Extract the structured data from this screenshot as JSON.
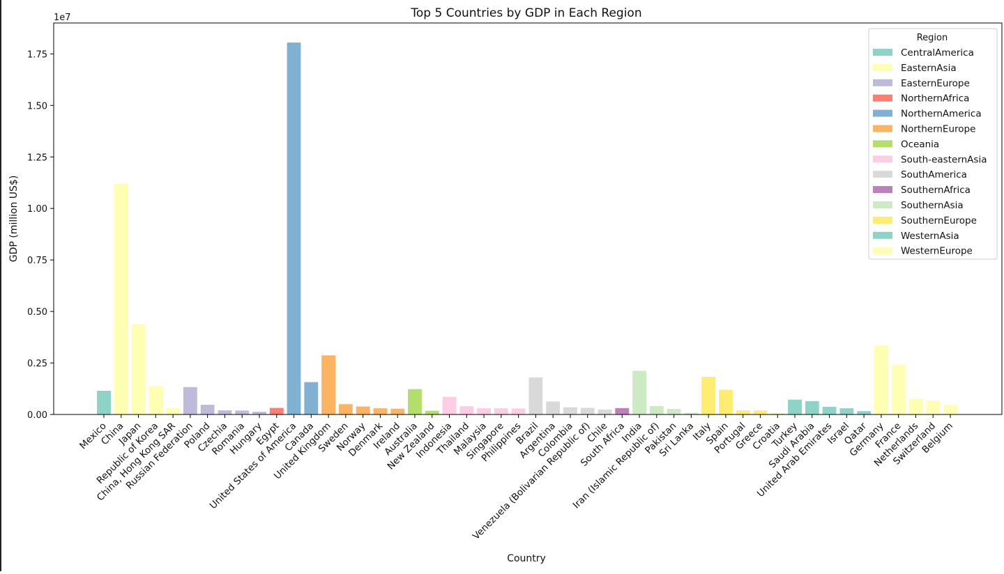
{
  "chart_data": {
    "type": "bar",
    "title": "Top 5 Countries by GDP in Each Region",
    "xlabel": "Country",
    "ylabel": "GDP (million US$)",
    "y_exponent_label": "1e7",
    "ylim": [
      0,
      19000000
    ],
    "yticks": [
      0,
      2500000,
      5000000,
      7500000,
      10000000,
      12500000,
      15000000,
      17500000
    ],
    "ytick_labels": [
      "0.00",
      "0.25",
      "0.50",
      "0.75",
      "1.00",
      "1.25",
      "1.50",
      "1.75"
    ],
    "legend": {
      "title": "Region",
      "placement": "top-right"
    },
    "regions": [
      {
        "name": "CentralAmerica",
        "color": "#8dd3c7"
      },
      {
        "name": "EasternAsia",
        "color": "#ffffb3"
      },
      {
        "name": "EasternEurope",
        "color": "#bebada"
      },
      {
        "name": "NorthernAfrica",
        "color": "#fb8072"
      },
      {
        "name": "NorthernAmerica",
        "color": "#80b1d3"
      },
      {
        "name": "NorthernEurope",
        "color": "#fdb462"
      },
      {
        "name": "Oceania",
        "color": "#b3de69"
      },
      {
        "name": "South-easternAsia",
        "color": "#fccde5"
      },
      {
        "name": "SouthAmerica",
        "color": "#d9d9d9"
      },
      {
        "name": "SouthernAfrica",
        "color": "#bc80bd"
      },
      {
        "name": "SouthernAsia",
        "color": "#ccebc5"
      },
      {
        "name": "SouthernEurope",
        "color": "#ffed6f"
      },
      {
        "name": "WesternAsia",
        "color": "#8dd3c7"
      },
      {
        "name": "WesternEurope",
        "color": "#ffffb3"
      }
    ],
    "bars": [
      {
        "country": "Mexico",
        "region": "CentralAmerica",
        "value": 1150000
      },
      {
        "country": "China",
        "region": "EasternAsia",
        "value": 11200000
      },
      {
        "country": "Japan",
        "region": "EasternAsia",
        "value": 4380000
      },
      {
        "country": "Republic of Korea",
        "region": "EasternAsia",
        "value": 1380000
      },
      {
        "country": "China, Hong Kong SAR",
        "region": "EasternAsia",
        "value": 320000
      },
      {
        "country": "Russian Federation",
        "region": "EasternEurope",
        "value": 1330000
      },
      {
        "country": "Poland",
        "region": "EasternEurope",
        "value": 470000
      },
      {
        "country": "Czechia",
        "region": "EasternEurope",
        "value": 200000
      },
      {
        "country": "Romania",
        "region": "EasternEurope",
        "value": 190000
      },
      {
        "country": "Hungary",
        "region": "EasternEurope",
        "value": 130000
      },
      {
        "country": "Egypt",
        "region": "NorthernAfrica",
        "value": 320000
      },
      {
        "country": "United States of America",
        "region": "NorthernAmerica",
        "value": 18050000
      },
      {
        "country": "Canada",
        "region": "NorthernAmerica",
        "value": 1570000
      },
      {
        "country": "United Kingdom",
        "region": "NorthernEurope",
        "value": 2870000
      },
      {
        "country": "Sweden",
        "region": "NorthernEurope",
        "value": 500000
      },
      {
        "country": "Norway",
        "region": "NorthernEurope",
        "value": 390000
      },
      {
        "country": "Denmark",
        "region": "NorthernEurope",
        "value": 300000
      },
      {
        "country": "Ireland",
        "region": "NorthernEurope",
        "value": 280000
      },
      {
        "country": "Australia",
        "region": "Oceania",
        "value": 1230000
      },
      {
        "country": "New Zealand",
        "region": "Oceania",
        "value": 180000
      },
      {
        "country": "Indonesia",
        "region": "South-easternAsia",
        "value": 860000
      },
      {
        "country": "Thailand",
        "region": "South-easternAsia",
        "value": 400000
      },
      {
        "country": "Malaysia",
        "region": "South-easternAsia",
        "value": 300000
      },
      {
        "country": "Singapore",
        "region": "South-easternAsia",
        "value": 300000
      },
      {
        "country": "Philippines",
        "region": "South-easternAsia",
        "value": 290000
      },
      {
        "country": "Brazil",
        "region": "SouthAmerica",
        "value": 1800000
      },
      {
        "country": "Argentina",
        "region": "SouthAmerica",
        "value": 630000
      },
      {
        "country": "Colombia",
        "region": "SouthAmerica",
        "value": 350000
      },
      {
        "country": "Venezuela (Bolivarian Republic of)",
        "region": "SouthAmerica",
        "value": 320000
      },
      {
        "country": "Chile",
        "region": "SouthAmerica",
        "value": 240000
      },
      {
        "country": "South Africa",
        "region": "SouthernAfrica",
        "value": 310000
      },
      {
        "country": "India",
        "region": "SouthernAsia",
        "value": 2120000
      },
      {
        "country": "Iran (Islamic Republic of)",
        "region": "SouthernAsia",
        "value": 410000
      },
      {
        "country": "Pakistan",
        "region": "SouthernAsia",
        "value": 270000
      },
      {
        "country": "Sri Lanka",
        "region": "SouthernAsia",
        "value": 80000
      },
      {
        "country": "Italy",
        "region": "SouthernEurope",
        "value": 1830000
      },
      {
        "country": "Spain",
        "region": "SouthernEurope",
        "value": 1200000
      },
      {
        "country": "Portugal",
        "region": "SouthernEurope",
        "value": 200000
      },
      {
        "country": "Greece",
        "region": "SouthernEurope",
        "value": 195000
      },
      {
        "country": "Croatia",
        "region": "SouthernEurope",
        "value": 50000
      },
      {
        "country": "Turkey",
        "region": "WesternAsia",
        "value": 720000
      },
      {
        "country": "Saudi Arabia",
        "region": "WesternAsia",
        "value": 650000
      },
      {
        "country": "United Arab Emirates",
        "region": "WesternAsia",
        "value": 370000
      },
      {
        "country": "Israel",
        "region": "WesternAsia",
        "value": 300000
      },
      {
        "country": "Qatar",
        "region": "WesternAsia",
        "value": 165000
      },
      {
        "country": "Germany",
        "region": "WesternEurope",
        "value": 3360000
      },
      {
        "country": "France",
        "region": "WesternEurope",
        "value": 2420000
      },
      {
        "country": "Netherlands",
        "region": "WesternEurope",
        "value": 760000
      },
      {
        "country": "Switzerland",
        "region": "WesternEurope",
        "value": 680000
      },
      {
        "country": "Belgium",
        "region": "WesternEurope",
        "value": 460000
      }
    ]
  }
}
